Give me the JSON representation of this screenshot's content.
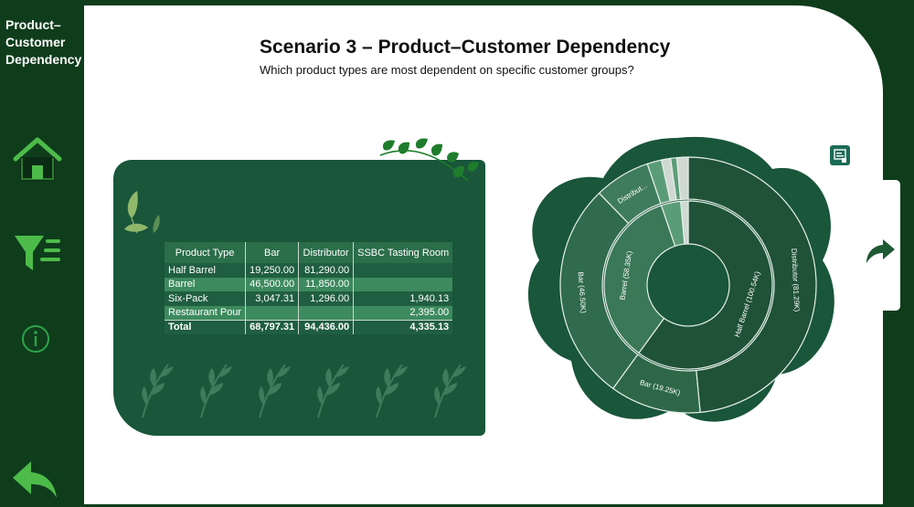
{
  "sidebar": {
    "title_lines": [
      "Product–",
      "Customer",
      "Dependency"
    ],
    "icons": [
      "home-icon",
      "filter-icon",
      "info-icon",
      "back-arrow-icon"
    ]
  },
  "header": {
    "title": "Scenario 3 – Product–Customer Dependency",
    "subtitle": "Which product types are most dependent on specific customer groups?"
  },
  "table": {
    "columns": [
      "Product Type",
      "Bar",
      "Distributor",
      "SSBC Tasting Room"
    ],
    "rows": [
      [
        "Half Barrel",
        "19,250.00",
        "81,290.00",
        ""
      ],
      [
        "Barrel",
        "46,500.00",
        "11,850.00",
        ""
      ],
      [
        "Six-Pack",
        "3,047.31",
        "1,296.00",
        "1,940.13"
      ],
      [
        "Restaurant Pour",
        "",
        "",
        "2,395.00"
      ]
    ],
    "total": [
      "Total",
      "68,797.31",
      "94,436.00",
      "4,335.13"
    ]
  },
  "chart_data": {
    "type": "sunburst",
    "inner_ring": [
      {
        "name": "Half Barrel",
        "value": 100.54,
        "label": "Half Barrel (100.54K)"
      },
      {
        "name": "Barrel",
        "value": 58.35,
        "label": "Barrel (58.35K)"
      },
      {
        "name": "Six-Pack",
        "value": 6.28,
        "label": ""
      },
      {
        "name": "Restaurant Pour",
        "value": 2.4,
        "label": ""
      }
    ],
    "outer_ring": [
      {
        "parent": "Half Barrel",
        "name": "Distributor",
        "value": 81.29,
        "label": "Distributor (81.29K)"
      },
      {
        "parent": "Half Barrel",
        "name": "Bar",
        "value": 19.25,
        "label": "Bar (19.25K)"
      },
      {
        "parent": "Barrel",
        "name": "Bar",
        "value": 46.5,
        "label": "Bar (46.50K)"
      },
      {
        "parent": "Barrel",
        "name": "Distributor",
        "value": 11.85,
        "label": "Distribut..."
      },
      {
        "parent": "Six-Pack",
        "name": "Bar",
        "value": 3.05,
        "label": ""
      },
      {
        "parent": "Six-Pack",
        "name": "SSBC Tasting Room",
        "value": 1.94,
        "label": ""
      },
      {
        "parent": "Six-Pack",
        "name": "Distributor",
        "value": 1.3,
        "label": ""
      },
      {
        "parent": "Restaurant Pour",
        "name": "SSBC Tasting Room",
        "value": 2.4,
        "label": ""
      }
    ],
    "colors": {
      "Half Barrel": "#1f5236",
      "Barrel": "#3a7858",
      "Six-Pack": "#5b9c78",
      "Restaurant Pour": "#cfd8d2",
      "Distributor": "#1f5236",
      "Bar": "#2d6748",
      "SSBC Tasting Room": "#cfd8d2"
    }
  }
}
